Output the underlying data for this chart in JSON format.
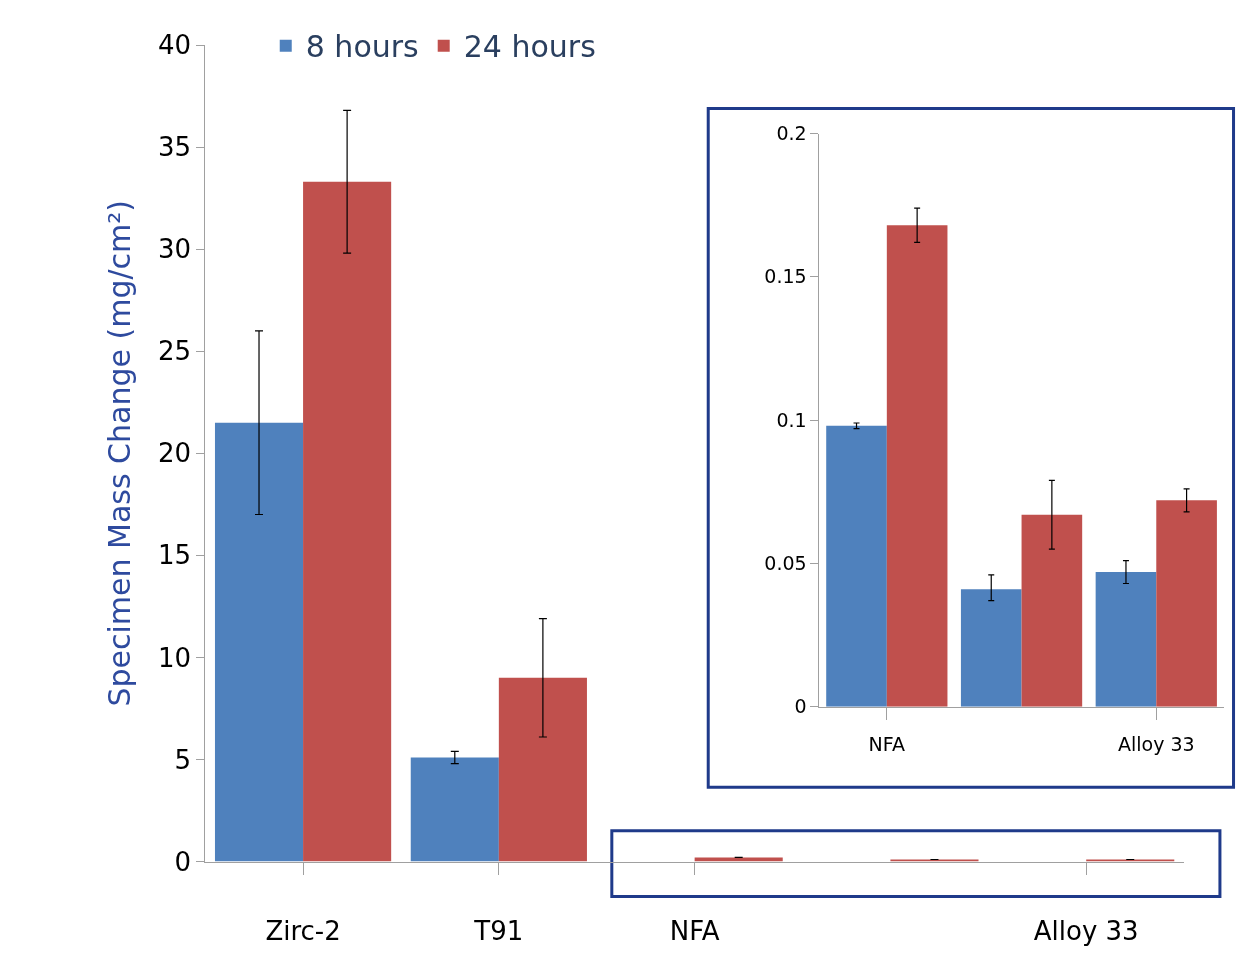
{
  "chart_data": [
    {
      "type": "bar",
      "ylabel": "Specimen Mass Change (mg/cm²)",
      "categories": [
        "Zirc-2",
        "T91",
        "NFA",
        null,
        "Alloy 33"
      ],
      "ylim": [
        0,
        40
      ],
      "yticks": [
        0,
        5,
        10,
        15,
        20,
        25,
        30,
        35,
        40
      ],
      "grid": false,
      "legend": "top left",
      "series": [
        {
          "name": "8 hours",
          "color": "#4f81bd",
          "values": [
            21.5,
            5.1,
            null,
            null,
            null
          ],
          "errors": [
            [
              17,
              26
            ],
            [
              4.8,
              5.4
            ],
            null,
            null,
            null
          ]
        },
        {
          "name": "24 hours",
          "color": "#c0504d",
          "values": [
            33.3,
            9.0,
            0.2,
            0.1,
            0.1
          ],
          "errors": [
            [
              29.8,
              36.8
            ],
            [
              6.1,
              11.9
            ],
            null,
            null,
            null
          ]
        }
      ]
    },
    {
      "type": "bar",
      "categories": [
        "NFA",
        null,
        "Alloy 33"
      ],
      "ylim": [
        0,
        0.2
      ],
      "yticks": [
        0,
        0.05,
        0.1,
        0.15,
        0.2
      ],
      "grid": false,
      "legend": false,
      "series": [
        {
          "color": "#4f81bd",
          "values": [
            0.098,
            0.041,
            0.047
          ],
          "errors": [
            [
              0.097,
              0.099
            ],
            [
              0.037,
              0.046
            ],
            [
              0.043,
              0.051
            ]
          ]
        },
        {
          "color": "#c0504d",
          "values": [
            0.168,
            0.067,
            0.072
          ],
          "errors": [
            [
              0.162,
              0.174
            ],
            [
              0.055,
              0.079
            ],
            [
              0.068,
              0.076
            ]
          ]
        }
      ]
    }
  ]
}
